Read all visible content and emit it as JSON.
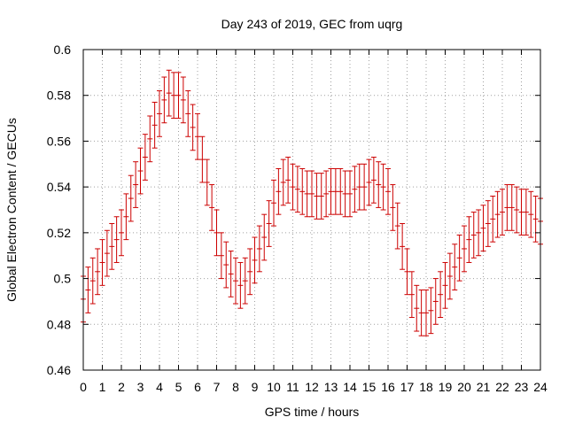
{
  "chart_data": {
    "type": "line",
    "title": "Day 243 of 2019, GEC from uqrg",
    "xlabel": "GPS time / hours",
    "ylabel": "Global Electron Content / GECUs",
    "xlim": [
      0,
      24
    ],
    "ylim": [
      0.46,
      0.6
    ],
    "grid": true,
    "series_color": "#cc0000",
    "x_ticks": [
      "0",
      "1",
      "2",
      "3",
      "4",
      "5",
      "6",
      "7",
      "8",
      "9",
      "10",
      "11",
      "12",
      "13",
      "14",
      "15",
      "16",
      "17",
      "18",
      "19",
      "20",
      "21",
      "22",
      "23",
      "24"
    ],
    "y_ticks": [
      "0.46",
      "0.48",
      "0.5",
      "0.52",
      "0.54",
      "0.56",
      "0.58",
      "0.6"
    ],
    "series": [
      {
        "name": "GEC",
        "x": [
          0,
          0.25,
          0.5,
          0.75,
          1,
          1.25,
          1.5,
          1.75,
          2,
          2.25,
          2.5,
          2.75,
          3,
          3.25,
          3.5,
          3.75,
          4,
          4.25,
          4.5,
          4.75,
          5,
          5.25,
          5.5,
          5.75,
          6,
          6.25,
          6.5,
          6.75,
          7,
          7.25,
          7.5,
          7.75,
          8,
          8.25,
          8.5,
          8.75,
          9,
          9.25,
          9.5,
          9.75,
          10,
          10.25,
          10.5,
          10.75,
          11,
          11.25,
          11.5,
          11.75,
          12,
          12.25,
          12.5,
          12.75,
          13,
          13.25,
          13.5,
          13.75,
          14,
          14.25,
          14.5,
          14.75,
          15,
          15.25,
          15.5,
          15.75,
          16,
          16.25,
          16.5,
          16.75,
          17,
          17.25,
          17.5,
          17.75,
          18,
          18.25,
          18.5,
          18.75,
          19,
          19.25,
          19.5,
          19.75,
          20,
          20.25,
          20.5,
          20.75,
          21,
          21.25,
          21.5,
          21.75,
          22,
          22.25,
          22.5,
          22.75,
          23,
          23.25,
          23.5,
          23.75,
          24
        ],
        "y": [
          0.491,
          0.495,
          0.499,
          0.503,
          0.507,
          0.511,
          0.514,
          0.517,
          0.52,
          0.527,
          0.535,
          0.541,
          0.547,
          0.553,
          0.561,
          0.567,
          0.572,
          0.578,
          0.581,
          0.58,
          0.58,
          0.578,
          0.572,
          0.566,
          0.562,
          0.552,
          0.542,
          0.531,
          0.52,
          0.51,
          0.506,
          0.502,
          0.499,
          0.497,
          0.499,
          0.503,
          0.508,
          0.513,
          0.518,
          0.524,
          0.533,
          0.538,
          0.542,
          0.543,
          0.54,
          0.539,
          0.538,
          0.537,
          0.537,
          0.536,
          0.536,
          0.537,
          0.538,
          0.538,
          0.538,
          0.537,
          0.537,
          0.539,
          0.54,
          0.54,
          0.542,
          0.543,
          0.541,
          0.54,
          0.538,
          0.531,
          0.523,
          0.514,
          0.503,
          0.493,
          0.487,
          0.485,
          0.485,
          0.486,
          0.49,
          0.493,
          0.497,
          0.501,
          0.505,
          0.509,
          0.513,
          0.517,
          0.519,
          0.52,
          0.522,
          0.524,
          0.526,
          0.528,
          0.529,
          0.531,
          0.531,
          0.53,
          0.529,
          0.529,
          0.528,
          0.526,
          0.525
        ],
        "error": 0.01
      }
    ]
  }
}
